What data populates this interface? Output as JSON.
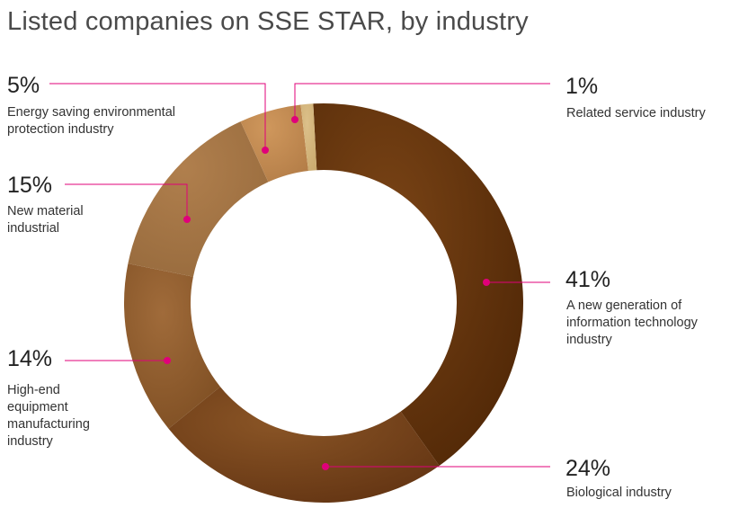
{
  "title": "Listed companies on SSE STAR, by industry",
  "chart_data": {
    "type": "pie",
    "title": "Listed companies on SSE STAR, by industry",
    "unit": "%",
    "series": [
      {
        "name": "A new generation of information technology industry",
        "value": 41,
        "label": "41%",
        "color": "#5a2e08"
      },
      {
        "name": "Biological industry",
        "value": 24,
        "label": "24%",
        "color": "#6d3d14"
      },
      {
        "name": "High-end equipment manufacturing industry",
        "value": 14,
        "label": "14%",
        "color": "#8a5a2c"
      },
      {
        "name": "New material industrial",
        "value": 15,
        "label": "15%",
        "color": "#a37445"
      },
      {
        "name": "Energy saving environmental protection industry",
        "value": 5,
        "label": "5%",
        "color": "#c08a52"
      },
      {
        "name": "Related service industry",
        "value": 1,
        "label": "1%",
        "color": "#d6b57c"
      }
    ],
    "annotation_color": "#e0007a"
  }
}
